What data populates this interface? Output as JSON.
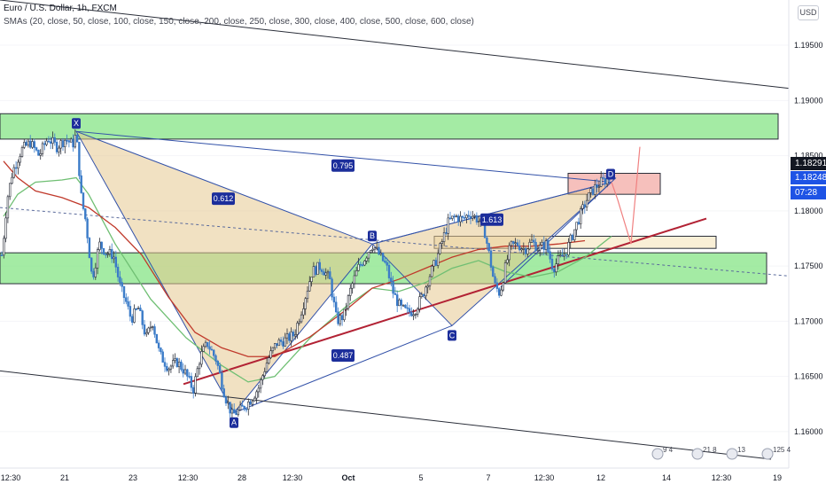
{
  "header": {
    "symbol": "Euro / U.S. Dollar, 1h, FXCM",
    "indicators": "SMAs (20, close, 50, close, 100, close, 150, close, 200, close, 250, close, 300, close, 400, close, 500, close, 600, close)"
  },
  "currency": "USD",
  "price_tags": {
    "last": "1.18291",
    "sma": "1.18248",
    "countdown": "07:28",
    "colors": {
      "last": "#131722",
      "sma": "#1e53e5",
      "countdown": "#1e53e5"
    }
  },
  "colors": {
    "up": "#2a2e39",
    "down": "#3a7bc8",
    "fill": "#ffffff",
    "pattern_fill": "#e6c890",
    "pattern_edge": "#3251a8",
    "zone_green": "#7de37d",
    "zone_red": "#f2a5a0",
    "zone_tan": "#f7e8c4",
    "trend_red": "#b22234",
    "sma_green": "#6fbf73",
    "sma_red": "#c0392b",
    "channel": "#2a2e39",
    "projection": "#f08080",
    "label_bg": "#1c2e9b"
  },
  "chart_data": {
    "type": "candlestick",
    "title": "Euro / U.S. Dollar, 1h, FXCM",
    "y_ticks": [
      "1.19500",
      "1.19000",
      "1.18500",
      "1.18000",
      "1.17500",
      "1.17000",
      "1.16500",
      "1.16000"
    ],
    "x_ticks": [
      "12:30",
      "21",
      "23",
      "12:30",
      "28",
      "12:30",
      "Oct",
      "5",
      "7",
      "12:30",
      "12",
      "14",
      "12:30",
      "19"
    ],
    "ylim": [
      1.1567,
      1.1991
    ],
    "price_path": [
      [
        0,
        1.1745
      ],
      [
        4,
        1.1775
      ],
      [
        8,
        1.181
      ],
      [
        14,
        1.1835
      ],
      [
        24,
        1.1855
      ],
      [
        34,
        1.1862
      ],
      [
        44,
        1.185
      ],
      [
        54,
        1.1866
      ],
      [
        64,
        1.1858
      ],
      [
        74,
        1.1865
      ],
      [
        82,
        1.186
      ],
      [
        86,
        1.187
      ],
      [
        92,
        1.181
      ],
      [
        97,
        1.179
      ],
      [
        104,
        1.1738
      ],
      [
        112,
        1.177
      ],
      [
        120,
        1.1762
      ],
      [
        128,
        1.176
      ],
      [
        136,
        1.173
      ],
      [
        142,
        1.1718
      ],
      [
        148,
        1.1702
      ],
      [
        156,
        1.1712
      ],
      [
        165,
        1.1685
      ],
      [
        172,
        1.17
      ],
      [
        180,
        1.167
      ],
      [
        190,
        1.1658
      ],
      [
        200,
        1.1663
      ],
      [
        208,
        1.1655
      ],
      [
        218,
        1.1638
      ],
      [
        226,
        1.1668
      ],
      [
        234,
        1.168
      ],
      [
        244,
        1.1665
      ],
      [
        254,
        1.1632
      ],
      [
        262,
        1.1615
      ],
      [
        272,
        1.162
      ],
      [
        282,
        1.1628
      ],
      [
        292,
        1.164
      ],
      [
        302,
        1.1665
      ],
      [
        312,
        1.168
      ],
      [
        322,
        1.1683
      ],
      [
        332,
        1.1688
      ],
      [
        342,
        1.1715
      ],
      [
        352,
        1.1745
      ],
      [
        362,
        1.175
      ],
      [
        372,
        1.1738
      ],
      [
        380,
        1.17
      ],
      [
        388,
        1.1705
      ],
      [
        396,
        1.173
      ],
      [
        404,
        1.1748
      ],
      [
        412,
        1.1758
      ],
      [
        420,
        1.177
      ],
      [
        428,
        1.176
      ],
      [
        436,
        1.175
      ],
      [
        444,
        1.1725
      ],
      [
        452,
        1.1712
      ],
      [
        460,
        1.1708
      ],
      [
        468,
        1.171
      ],
      [
        476,
        1.1722
      ],
      [
        484,
        1.174
      ],
      [
        492,
        1.1755
      ],
      [
        500,
        1.1775
      ],
      [
        506,
        1.179
      ],
      [
        514,
        1.1795
      ],
      [
        522,
        1.1792
      ],
      [
        530,
        1.1798
      ],
      [
        538,
        1.1793
      ],
      [
        546,
        1.1785
      ],
      [
        552,
        1.176
      ],
      [
        558,
        1.1733
      ],
      [
        564,
        1.1725
      ],
      [
        570,
        1.1748
      ],
      [
        576,
        1.1768
      ],
      [
        584,
        1.177
      ],
      [
        592,
        1.1765
      ],
      [
        600,
        1.1772
      ],
      [
        608,
        1.1766
      ],
      [
        616,
        1.177
      ],
      [
        624,
        1.1748
      ],
      [
        630,
        1.1755
      ],
      [
        638,
        1.1762
      ],
      [
        646,
        1.1778
      ],
      [
        654,
        1.1795
      ],
      [
        662,
        1.181
      ],
      [
        670,
        1.182
      ],
      [
        678,
        1.1826
      ],
      [
        686,
        1.1829
      ]
    ],
    "smas": [
      {
        "color": "sma_green",
        "points": [
          [
            4,
            1.1795
          ],
          [
            20,
            1.1815
          ],
          [
            40,
            1.1826
          ],
          [
            70,
            1.1828
          ],
          [
            86,
            1.183
          ],
          [
            100,
            1.1815
          ],
          [
            130,
            1.177
          ],
          [
            170,
            1.172
          ],
          [
            210,
            1.1685
          ],
          [
            250,
            1.166
          ],
          [
            280,
            1.1645
          ],
          [
            310,
            1.165
          ],
          [
            350,
            1.1685
          ],
          [
            390,
            1.1713
          ],
          [
            420,
            1.173
          ],
          [
            450,
            1.1727
          ],
          [
            480,
            1.1735
          ],
          [
            510,
            1.1748
          ],
          [
            540,
            1.1755
          ],
          [
            570,
            1.1745
          ],
          [
            600,
            1.174
          ],
          [
            630,
            1.1745
          ],
          [
            660,
            1.1758
          ],
          [
            690,
            1.1777
          ]
        ]
      },
      {
        "color": "sma_red",
        "points": [
          [
            4,
            1.1845
          ],
          [
            20,
            1.183
          ],
          [
            40,
            1.1818
          ],
          [
            70,
            1.1812
          ],
          [
            100,
            1.1803
          ],
          [
            130,
            1.1785
          ],
          [
            160,
            1.176
          ],
          [
            190,
            1.1722
          ],
          [
            220,
            1.169
          ],
          [
            250,
            1.1676
          ],
          [
            280,
            1.1668
          ],
          [
            310,
            1.1668
          ],
          [
            350,
            1.1686
          ],
          [
            390,
            1.171
          ],
          [
            420,
            1.173
          ],
          [
            450,
            1.1738
          ],
          [
            480,
            1.1748
          ],
          [
            510,
            1.1758
          ],
          [
            540,
            1.1765
          ],
          [
            570,
            1.1768
          ],
          [
            600,
            1.1768
          ],
          [
            630,
            1.177
          ],
          [
            660,
            1.1773
          ]
        ]
      }
    ],
    "pattern": {
      "name": "bat",
      "points": [
        {
          "label": "X",
          "x": 86,
          "y": 1.1872
        },
        {
          "label": "A",
          "x": 264,
          "y": 1.1617
        },
        {
          "label": "B",
          "x": 420,
          "y": 1.177
        },
        {
          "label": "C",
          "x": 510,
          "y": 1.1696
        },
        {
          "label": "D",
          "x": 690,
          "y": 1.1826
        }
      ],
      "ratios": [
        {
          "text": "0.612",
          "x": 252,
          "y": 1.1811
        },
        {
          "text": "0.795",
          "x": 387,
          "y": 1.1841
        },
        {
          "text": "0.487",
          "x": 387,
          "y": 1.1669
        },
        {
          "text": "1.613",
          "x": 555,
          "y": 1.1792
        }
      ]
    },
    "zones": [
      {
        "color": "zone_green",
        "x1": 0,
        "x2": 878,
        "y1": 1.1865,
        "y2": 1.1888
      },
      {
        "color": "zone_green",
        "x1": 0,
        "x2": 865,
        "y1": 1.1734,
        "y2": 1.1762
      },
      {
        "color": "zone_red",
        "x1": 641,
        "x2": 745,
        "y1": 1.1815,
        "y2": 1.1834
      },
      {
        "color": "zone_tan",
        "x1": 490,
        "x2": 808,
        "y1": 1.1766,
        "y2": 1.1777
      }
    ],
    "lines": [
      {
        "kind": "channel",
        "x1": 0,
        "y1": 1.1991,
        "x2": 890,
        "y2": 1.1911
      },
      {
        "kind": "channel",
        "x1": 0,
        "y1": 1.1655,
        "x2": 870,
        "y2": 1.1575
      },
      {
        "kind": "trend",
        "x1": 207,
        "y1": 1.1643,
        "x2": 797,
        "y2": 1.1793
      },
      {
        "kind": "dashed",
        "x1": 0,
        "y1": 1.1803,
        "x2": 890,
        "y2": 1.1741
      },
      {
        "kind": "blue",
        "x1": 565,
        "y1": 1.1731,
        "x2": 695,
        "y2": 1.183
      }
    ],
    "projection": [
      [
        690,
        1.1826
      ],
      [
        697,
        1.181
      ],
      [
        712,
        1.177
      ],
      [
        722,
        1.1858
      ]
    ],
    "events": [
      {
        "x": 742,
        "label": "9 4"
      },
      {
        "x": 787,
        "label": "21 8"
      },
      {
        "x": 826,
        "label": "13"
      },
      {
        "x": 866,
        "label": "125 4"
      }
    ]
  }
}
